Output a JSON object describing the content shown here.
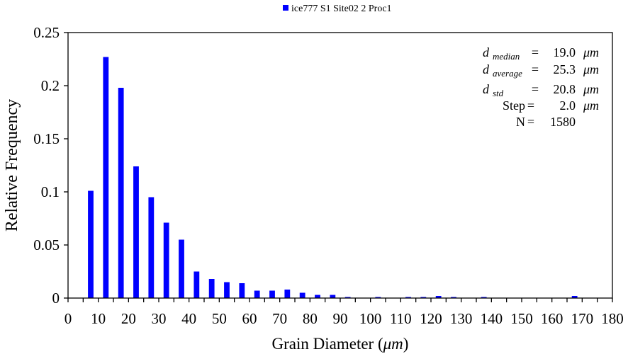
{
  "chart_data": {
    "type": "bar",
    "legend": {
      "label": "ice777 S1 Site02 2 Proc1",
      "placement": "top-center",
      "color": "#0000ff"
    },
    "xlabel": {
      "prefix": "Grain Diameter (",
      "unit": "μm",
      "suffix": ")"
    },
    "ylabel": "Relative Frequency",
    "xlim": [
      0,
      180
    ],
    "ylim": [
      0,
      0.25
    ],
    "x_ticks": [
      0,
      5,
      10,
      15,
      20,
      25,
      30,
      35,
      40,
      45,
      50,
      55,
      60,
      65,
      70,
      75,
      80,
      85,
      90,
      95,
      100,
      105,
      110,
      115,
      120,
      125,
      130,
      135,
      140,
      145,
      150,
      155,
      160,
      165,
      170,
      175,
      180
    ],
    "x_tick_labels": [
      "0",
      "10",
      "20",
      "30",
      "40",
      "50",
      "60",
      "70",
      "80",
      "90",
      "100",
      "110",
      "120",
      "130",
      "140",
      "150",
      "160",
      "170",
      "180"
    ],
    "y_ticks": [
      {
        "value": 0,
        "label": "0"
      },
      {
        "value": 0.05,
        "label": "0.05"
      },
      {
        "value": 0.1,
        "label": "0.1"
      },
      {
        "value": 0.15,
        "label": "0.15"
      },
      {
        "value": 0.2,
        "label": "0.2"
      },
      {
        "value": 0.25,
        "label": "0.25"
      }
    ],
    "grid": false,
    "bar_color": "#0000ff",
    "x": [
      7.5,
      12.5,
      17.5,
      22.5,
      27.5,
      32.5,
      37.5,
      42.5,
      47.5,
      52.5,
      57.5,
      62.5,
      67.5,
      72.5,
      77.5,
      82.5,
      87.5,
      92.5,
      97.5,
      102.5,
      107.5,
      112.5,
      117.5,
      122.5,
      127.5,
      132.5,
      137.5,
      142.5,
      147.5,
      152.5,
      157.5,
      162.5,
      167.5,
      172.5,
      177.5
    ],
    "values": [
      0.101,
      0.227,
      0.198,
      0.124,
      0.095,
      0.071,
      0.055,
      0.025,
      0.018,
      0.015,
      0.014,
      0.007,
      0.007,
      0.008,
      0.005,
      0.003,
      0.003,
      0.001,
      0.0,
      0.001,
      0.0,
      0.001,
      0.001,
      0.002,
      0.001,
      0.0,
      0.001,
      0.0,
      0.0,
      0.0,
      0.0,
      0.0,
      0.002,
      0.0,
      0.0
    ],
    "stats": [
      {
        "label": "d",
        "sub": "median",
        "eq": "=",
        "value": "19.0",
        "unit": "μm"
      },
      {
        "label": "d",
        "sub": "average",
        "eq": "=",
        "value": "25.3",
        "unit": "μm"
      },
      {
        "label": "d",
        "sub": "std",
        "eq": "=",
        "value": "20.8",
        "unit": "μm"
      },
      {
        "label": "Step",
        "sub": "",
        "eq": "=",
        "value": "2.0",
        "unit": "μm"
      },
      {
        "label": "N",
        "sub": "",
        "eq": "=",
        "value": "1580",
        "unit": ""
      }
    ]
  }
}
